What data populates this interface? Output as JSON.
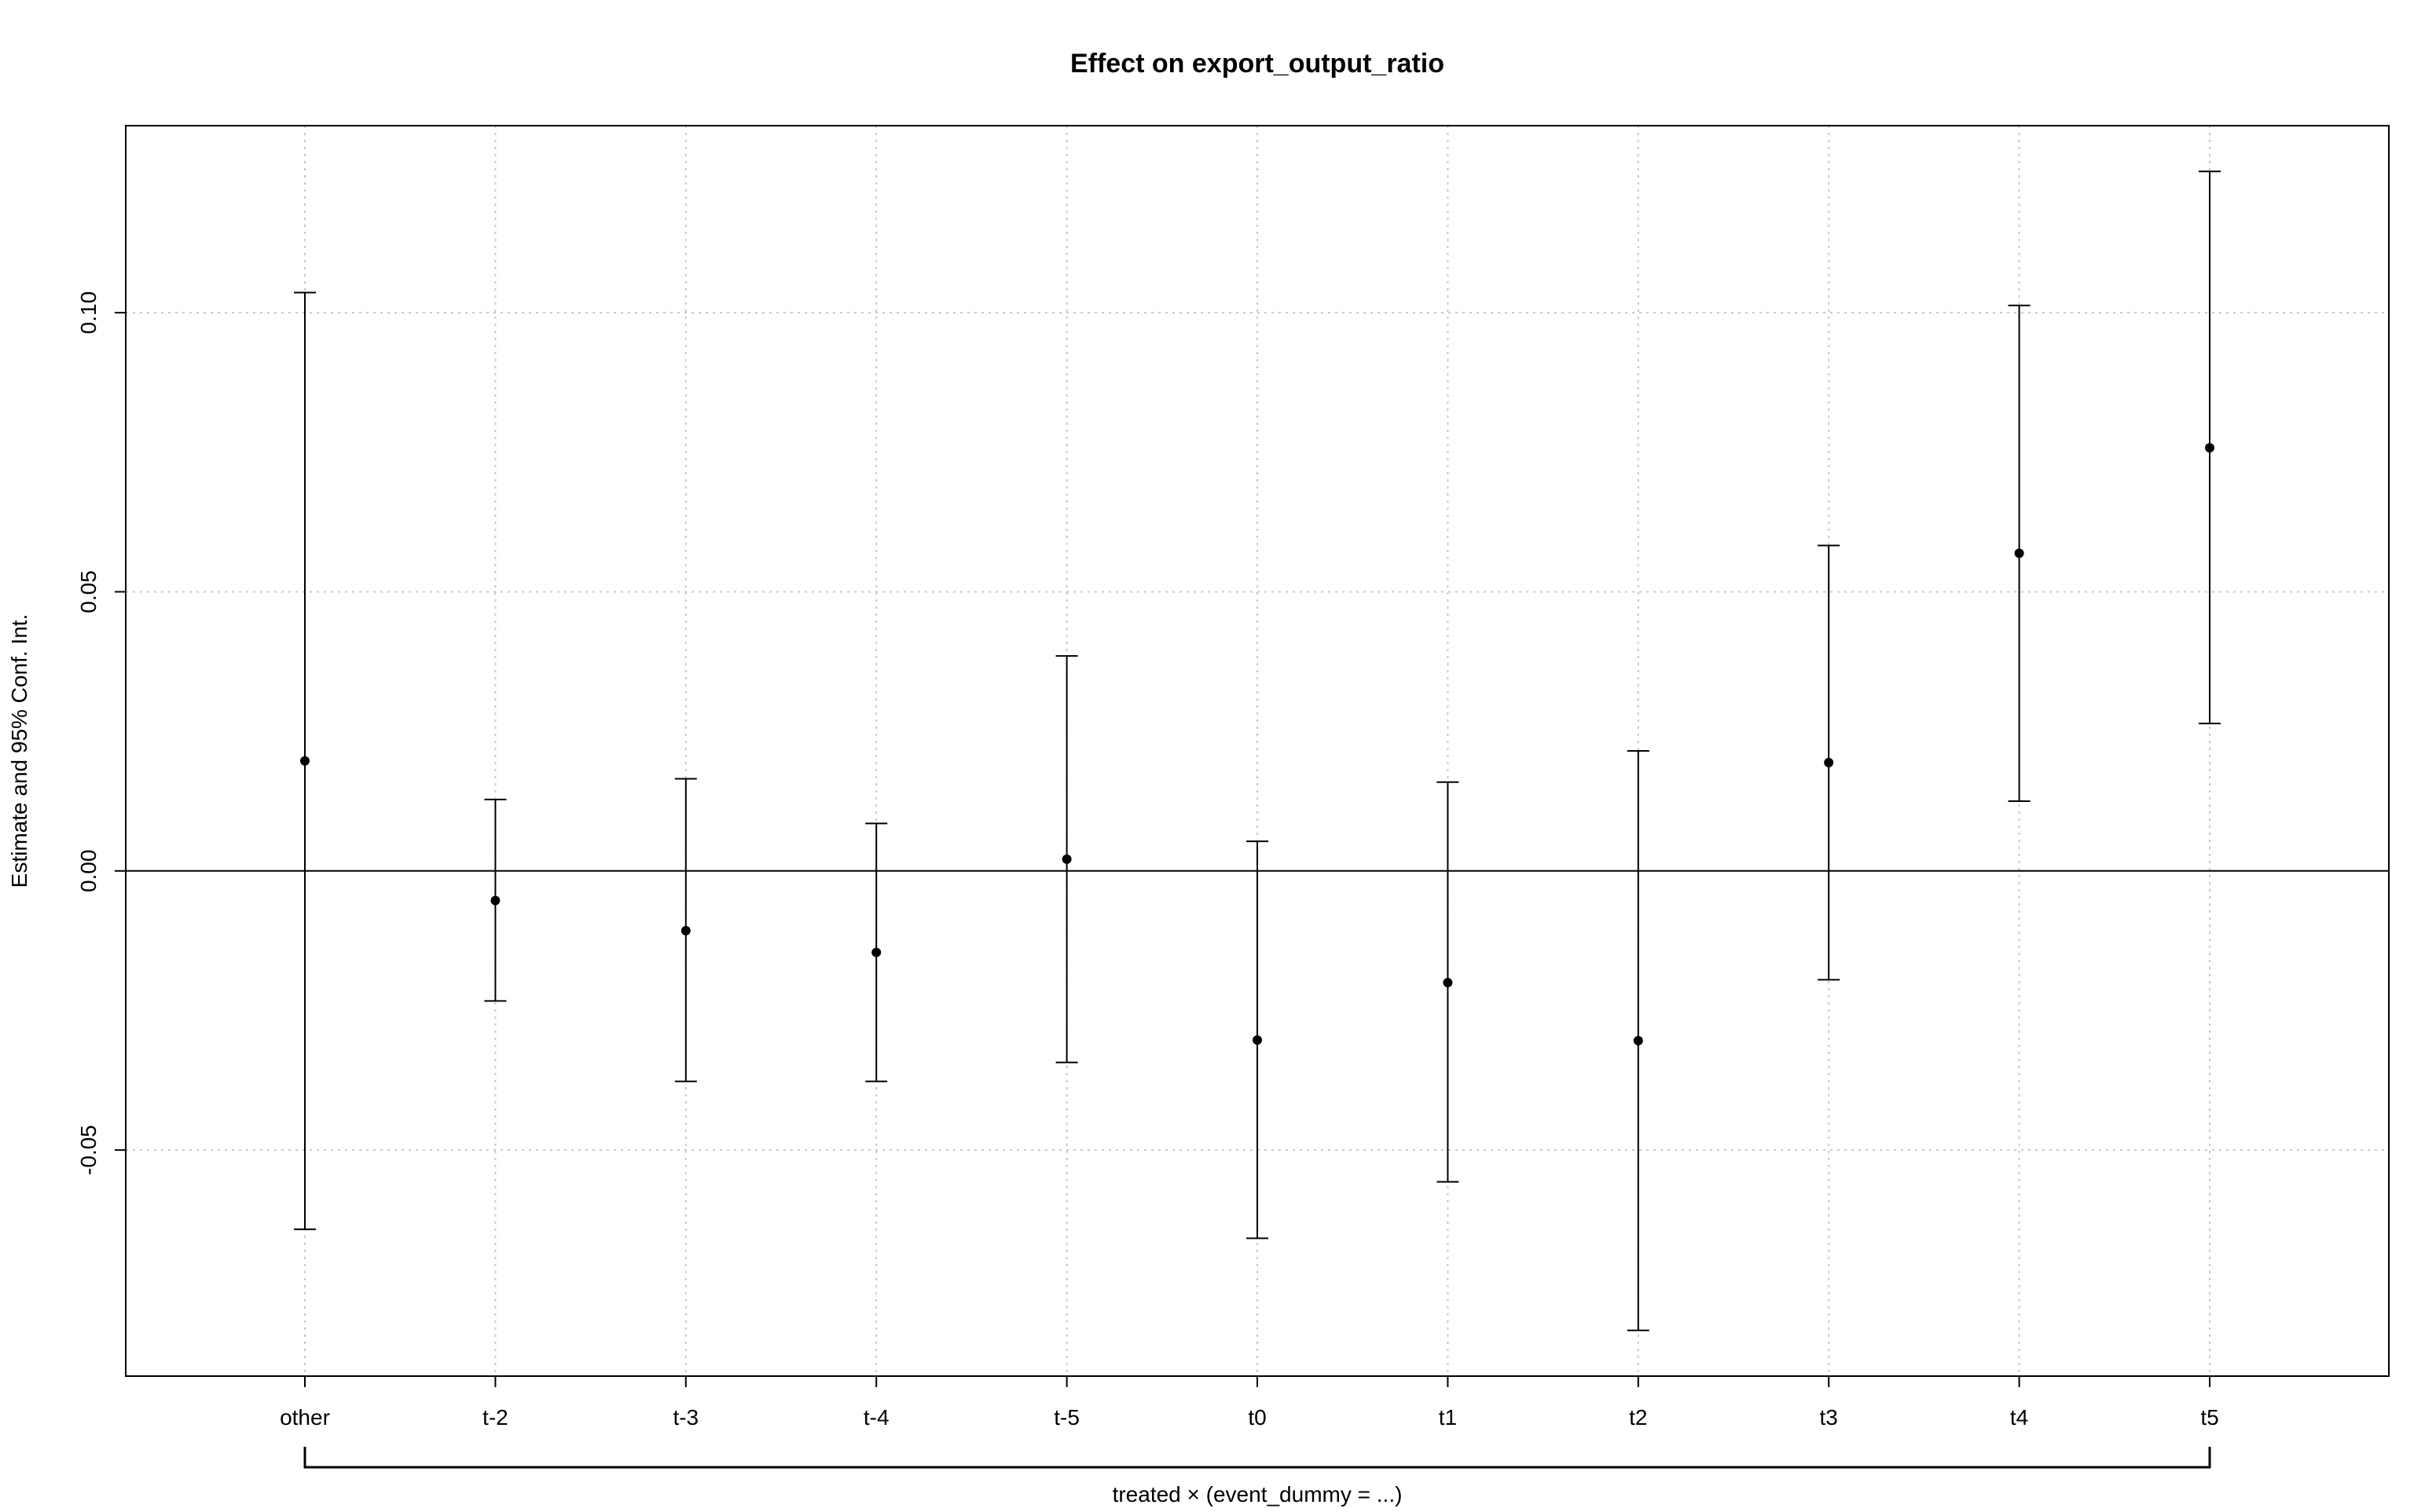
{
  "chart_data": {
    "type": "scatter",
    "title": "Effect on export_output_ratio",
    "xlabel": "treated × (event_dummy = ...)",
    "ylabel": "Estimate and 95% Conf. Int.",
    "categories": [
      "other",
      "t-2",
      "t-3",
      "t-4",
      "t-5",
      "t0",
      "t1",
      "t2",
      "t3",
      "t4",
      "t5"
    ],
    "series": [
      {
        "estimate": [
          0.0197,
          -0.0053,
          -0.0107,
          -0.0146,
          0.0021,
          -0.0303,
          -0.02,
          -0.0304,
          0.0194,
          0.0569,
          0.0758
        ],
        "ci_low": [
          -0.0642,
          -0.0233,
          -0.0377,
          -0.0377,
          -0.0343,
          -0.0658,
          -0.0557,
          -0.0823,
          -0.0195,
          0.0125,
          0.0264
        ],
        "ci_high": [
          0.1036,
          0.0128,
          0.0165,
          0.0085,
          0.0385,
          0.0053,
          0.0159,
          0.0215,
          0.0583,
          0.1013,
          0.1253
        ]
      }
    ],
    "y_ticks": [
      -0.05,
      0.0,
      0.05,
      0.1
    ],
    "y_tick_labels": [
      "-0.05",
      "0.00",
      "0.05",
      "0.10"
    ],
    "ylim": [
      -0.0905,
      0.1335
    ],
    "zero_line": 0,
    "grid": true,
    "grid_style": "dotted",
    "colors": {
      "marks": "#000000",
      "grid": "#c8c8c8",
      "frame": "#000000"
    }
  }
}
